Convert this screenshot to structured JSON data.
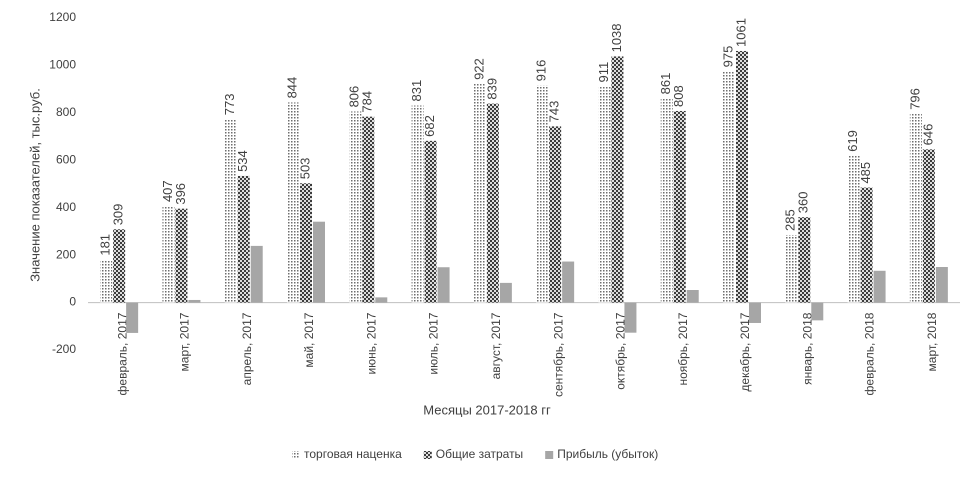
{
  "chart_data": {
    "type": "bar",
    "categories": [
      "февраль, 2017",
      "март, 2017",
      "апрель, 2017",
      "май, 2017",
      "июнь, 2017",
      "июль, 2017",
      "август, 2017",
      "сентябрь, 2017",
      "октябрь, 2017",
      "ноябрь, 2017",
      "декабрь, 2017",
      "январь, 2018",
      "февраль, 2018",
      "март, 2018"
    ],
    "series": [
      {
        "name": "торговая наценка",
        "color": "#6e6e6e",
        "values": [
          181,
          407,
          773,
          844,
          806,
          831,
          922,
          916,
          911,
          861,
          975,
          285,
          619,
          796
        ]
      },
      {
        "name": "Общие затраты",
        "color": "#3c3c3c",
        "values": [
          309,
          396,
          534,
          503,
          784,
          682,
          839,
          743,
          1038,
          808,
          1061,
          360,
          485,
          646
        ]
      },
      {
        "name": "Прибыль (убыток)",
        "color": "#a6a6a6",
        "values": [
          -128,
          11,
          239,
          341,
          22,
          149,
          83,
          173,
          -127,
          53,
          -86,
          -75,
          134,
          150
        ]
      }
    ],
    "x_label": "Месяцы 2017-2018 гг",
    "y_label": "Значение показателей, тыс.руб.",
    "ylim": [
      -200,
      1200
    ],
    "yticks": [
      -200,
      0,
      200,
      400,
      600,
      800,
      1000,
      1200
    ],
    "grid": false,
    "legend": "bottom"
  }
}
